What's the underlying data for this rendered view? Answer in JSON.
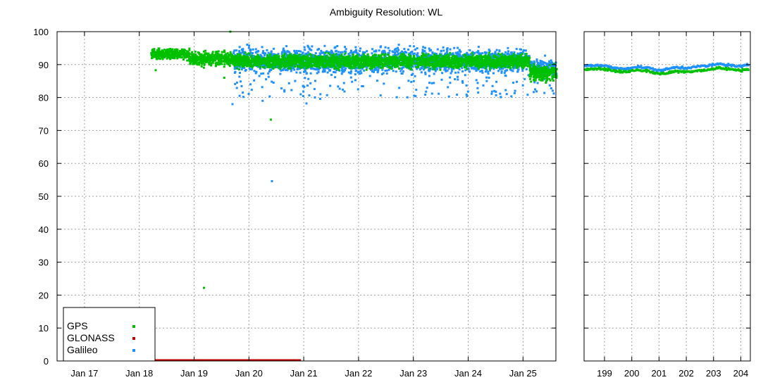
{
  "chart_data": [
    {
      "type": "scatter",
      "panel": "daily",
      "title": "Ambiguity Resolution: WL",
      "xlabel": "",
      "ylabel": "",
      "ylim": [
        0,
        100
      ],
      "xlim": [
        16.5,
        25.6
      ],
      "grid": true,
      "y_ticks": [
        0,
        10,
        20,
        30,
        40,
        50,
        60,
        70,
        80,
        90,
        100
      ],
      "x_ticks": [
        {
          "value": 17,
          "label": "Jan 17"
        },
        {
          "value": 18,
          "label": "Jan 18"
        },
        {
          "value": 19,
          "label": "Jan 19"
        },
        {
          "value": 20,
          "label": "Jan 20"
        },
        {
          "value": 21,
          "label": "Jan 21"
        },
        {
          "value": 22,
          "label": "Jan 22"
        },
        {
          "value": 23,
          "label": "Jan 23"
        },
        {
          "value": 24,
          "label": "Jan 24"
        },
        {
          "value": 25,
          "label": "Jan 25"
        }
      ],
      "legend": {
        "position": "bottom-left",
        "entries": [
          "GPS",
          "GLONASS",
          "Galileo"
        ]
      },
      "series": [
        {
          "name": "GPS",
          "color": "#00c000",
          "segments": [
            {
              "x": [
                18.2,
                18.9
              ],
              "center": 93.2,
              "spread": 1.4
            },
            {
              "x": [
                18.9,
                19.7
              ],
              "center": 91.8,
              "spread": 1.8
            },
            {
              "x": [
                19.7,
                25.1
              ],
              "center": 91.0,
              "spread": 1.8
            },
            {
              "x": [
                25.1,
                25.6
              ],
              "center": 87.5,
              "spread": 2.2
            }
          ],
          "outliers": [
            {
              "x": 19.18,
              "y": 22.2
            },
            {
              "x": 19.66,
              "y": 100
            },
            {
              "x": 20.4,
              "y": 73.3
            },
            {
              "x": 19.55,
              "y": 86.0
            },
            {
              "x": 18.3,
              "y": 88.3
            }
          ]
        },
        {
          "name": "GLONASS",
          "color": "#c00000",
          "segments": [
            {
              "x": [
                18.2,
                20.95
              ],
              "center": 0,
              "spread": 0
            }
          ],
          "outliers": []
        },
        {
          "name": "Galileo",
          "color": "#1e90ff",
          "segments": [
            {
              "x": [
                19.7,
                25.1
              ],
              "center": 91.2,
              "spread": 4.0
            },
            {
              "x": [
                25.1,
                25.6
              ],
              "center": 89.0,
              "spread": 3.0
            }
          ],
          "outliers": [
            {
              "x": 20.42,
              "y": 54.6
            },
            {
              "x": 19.7,
              "y": 78.0
            },
            {
              "x": 21.05,
              "y": 78.2
            },
            {
              "x": 21.3,
              "y": 79.6
            },
            {
              "x": 19.9,
              "y": 80.2
            },
            {
              "x": 20.25,
              "y": 79.0
            }
          ]
        }
      ]
    },
    {
      "type": "line",
      "panel": "weekly",
      "title": "",
      "xlabel": "",
      "ylabel": "",
      "ylim": [
        0,
        100
      ],
      "xlim": [
        198.25,
        204.35
      ],
      "grid": true,
      "x_ticks": [
        {
          "value": 199,
          "label": "199"
        },
        {
          "value": 200,
          "label": "200"
        },
        {
          "value": 201,
          "label": "201"
        },
        {
          "value": 202,
          "label": "202"
        },
        {
          "value": 203,
          "label": "203"
        },
        {
          "value": 204,
          "label": "204"
        }
      ],
      "series": [
        {
          "name": "GPS",
          "color": "#00c000",
          "x": [
            198.3,
            198.6,
            199.0,
            199.4,
            199.8,
            200.2,
            200.6,
            201.0,
            201.3,
            201.6,
            202.0,
            202.4,
            202.8,
            203.2,
            203.6,
            204.0,
            204.3
          ],
          "values": [
            88.5,
            88.9,
            88.6,
            88.0,
            87.8,
            88.4,
            88.0,
            87.2,
            87.4,
            88.0,
            87.8,
            88.2,
            88.4,
            89.0,
            88.6,
            88.2,
            88.8
          ]
        },
        {
          "name": "Galileo",
          "color": "#1e90ff",
          "x": [
            198.3,
            198.6,
            199.0,
            199.4,
            199.8,
            200.2,
            200.6,
            201.0,
            201.3,
            201.6,
            202.0,
            202.4,
            202.8,
            203.2,
            203.6,
            204.0,
            204.3
          ],
          "values": [
            89.6,
            89.8,
            89.6,
            88.9,
            88.8,
            89.3,
            89.0,
            88.2,
            88.6,
            89.2,
            89.0,
            89.4,
            89.6,
            90.2,
            89.8,
            89.4,
            89.9
          ]
        }
      ]
    }
  ]
}
